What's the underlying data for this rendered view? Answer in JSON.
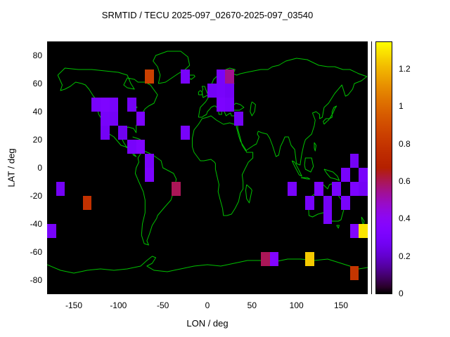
{
  "chart_data": {
    "type": "heatmap",
    "title": "SRMTID / TECU 2025-097_02670-2025-097_03540",
    "xlabel": "LON / deg",
    "ylabel": "LAT / deg",
    "xlim": [
      -180,
      180
    ],
    "ylim": [
      -90,
      90
    ],
    "x_ticks": [
      -150,
      -100,
      -50,
      0,
      50,
      100,
      150
    ],
    "y_ticks": [
      80,
      60,
      40,
      20,
      0,
      -20,
      -40,
      -60,
      -80
    ],
    "grid": false,
    "background_color": "#000000",
    "coastline_color": "#00c000",
    "cell_size_deg": 10,
    "colorbar": {
      "min": 0,
      "max": 1.35,
      "ticks": [
        0,
        0.2,
        0.4,
        0.6,
        0.8,
        1,
        1.2
      ],
      "colormap": "gnuplot",
      "position": "right"
    },
    "cells": [
      {
        "lon": -70,
        "lat": 60,
        "value": 0.85
      },
      {
        "lon": -30,
        "lat": 60,
        "value": 0.3
      },
      {
        "lon": 10,
        "lat": 60,
        "value": 0.3
      },
      {
        "lon": 20,
        "lat": 60,
        "value": 0.55
      },
      {
        "lon": 0,
        "lat": 50,
        "value": 0.28
      },
      {
        "lon": 10,
        "lat": 50,
        "value": 0.3
      },
      {
        "lon": 20,
        "lat": 50,
        "value": 0.28
      },
      {
        "lon": -130,
        "lat": 40,
        "value": 0.3
      },
      {
        "lon": -120,
        "lat": 40,
        "value": 0.33
      },
      {
        "lon": -110,
        "lat": 40,
        "value": 0.3
      },
      {
        "lon": -90,
        "lat": 40,
        "value": 0.28
      },
      {
        "lon": 10,
        "lat": 40,
        "value": 0.32
      },
      {
        "lon": 20,
        "lat": 40,
        "value": 0.3
      },
      {
        "lon": -120,
        "lat": 30,
        "value": 0.3
      },
      {
        "lon": -110,
        "lat": 30,
        "value": 0.28
      },
      {
        "lon": -80,
        "lat": 30,
        "value": 0.32
      },
      {
        "lon": 30,
        "lat": 30,
        "value": 0.28
      },
      {
        "lon": -120,
        "lat": 20,
        "value": 0.28
      },
      {
        "lon": -100,
        "lat": 20,
        "value": 0.26
      },
      {
        "lon": -30,
        "lat": 20,
        "value": 0.3
      },
      {
        "lon": -90,
        "lat": 10,
        "value": 0.3
      },
      {
        "lon": -80,
        "lat": 10,
        "value": 0.34
      },
      {
        "lon": -70,
        "lat": 0,
        "value": 0.3
      },
      {
        "lon": -70,
        "lat": -10,
        "value": 0.32
      },
      {
        "lon": -170,
        "lat": -20,
        "value": 0.28
      },
      {
        "lon": -40,
        "lat": -20,
        "value": 0.6
      },
      {
        "lon": -140,
        "lat": -30,
        "value": 0.78
      },
      {
        "lon": 90,
        "lat": -20,
        "value": 0.3
      },
      {
        "lon": 120,
        "lat": -20,
        "value": 0.33
      },
      {
        "lon": 140,
        "lat": -20,
        "value": 0.3
      },
      {
        "lon": 160,
        "lat": -20,
        "value": 0.32
      },
      {
        "lon": 170,
        "lat": -20,
        "value": 0.28
      },
      {
        "lon": 150,
        "lat": -10,
        "value": 0.3
      },
      {
        "lon": 170,
        "lat": -10,
        "value": 0.3
      },
      {
        "lon": 160,
        "lat": 0,
        "value": 0.28
      },
      {
        "lon": 110,
        "lat": -30,
        "value": 0.3
      },
      {
        "lon": 130,
        "lat": -30,
        "value": 0.28
      },
      {
        "lon": 150,
        "lat": -30,
        "value": 0.3
      },
      {
        "lon": 130,
        "lat": -40,
        "value": 0.3
      },
      {
        "lon": -180,
        "lat": -50,
        "value": 0.3
      },
      {
        "lon": 160,
        "lat": -50,
        "value": 0.35
      },
      {
        "lon": 170,
        "lat": -50,
        "value": 1.3
      },
      {
        "lon": 60,
        "lat": -70,
        "value": 0.6
      },
      {
        "lon": 70,
        "lat": -70,
        "value": 0.35
      },
      {
        "lon": 110,
        "lat": -70,
        "value": 1.25
      },
      {
        "lon": 160,
        "lat": -80,
        "value": 0.8
      }
    ]
  }
}
